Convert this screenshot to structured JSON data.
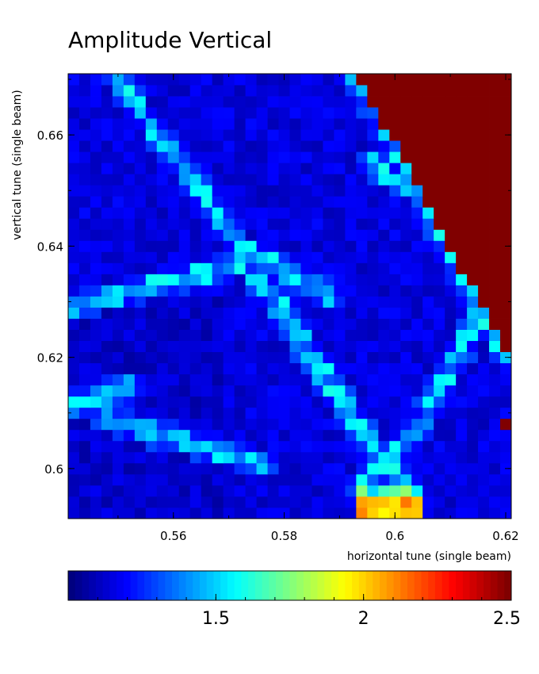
{
  "chart_data": {
    "type": "heatmap",
    "title": "Amplitude Vertical",
    "xlabel": "horizontal tune (single beam)",
    "ylabel": "vertical tune (single beam)",
    "xlim": [
      0.541,
      0.621
    ],
    "ylim": [
      0.591,
      0.671
    ],
    "xticks": [
      {
        "value": 0.56,
        "label": "0.56"
      },
      {
        "value": 0.58,
        "label": "0.58"
      },
      {
        "value": 0.6,
        "label": "0.6"
      },
      {
        "value": 0.62,
        "label": "0.62"
      }
    ],
    "yticks": [
      {
        "value": 0.6,
        "label": "0.6"
      },
      {
        "value": 0.62,
        "label": "0.62"
      },
      {
        "value": 0.64,
        "label": "0.64"
      },
      {
        "value": 0.66,
        "label": "0.66"
      }
    ],
    "grid": false,
    "colorbar": {
      "colormap": "jet",
      "range": [
        1.0,
        2.5
      ],
      "ticks": [
        {
          "value": 1.5,
          "label": "1.5"
        },
        {
          "value": 2.0,
          "label": "2"
        },
        {
          "value": 2.5,
          "label": "2.5"
        }
      ]
    },
    "grid_size": {
      "nx": 40,
      "ny": 40
    },
    "dominant_features": [
      {
        "desc": "saturated region top-right",
        "value": 2.5
      },
      {
        "desc": "resonance lines",
        "value": 1.45
      },
      {
        "desc": "bright spots near x=0.594-0.600, y=0.592",
        "value": 2.05
      }
    ]
  }
}
